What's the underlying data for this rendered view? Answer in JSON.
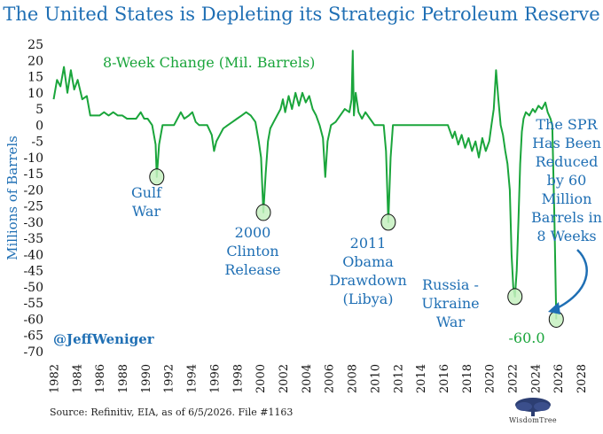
{
  "title": "The United States is Depleting its Strategic Petroleum Reserve",
  "source": "Source: Refinitiv, EIA, as of 6/5/2026.  File #1163",
  "handle": "@JeffWeniger",
  "logo_text": "WisdomTree",
  "colors": {
    "title": "#1f6fb4",
    "line": "#1aa53b",
    "axis_text": "#1f6fb4",
    "annotation": "#1f6fb4",
    "marker_fill": "#c6f0c0",
    "arrow": "#1f6fb4"
  },
  "chart_data": {
    "type": "line",
    "ylabel": "Millions of Barrels",
    "ylim": [
      -70,
      25
    ],
    "yticks": [
      25,
      20,
      15,
      10,
      5,
      0,
      -5,
      -10,
      -15,
      -20,
      -25,
      -30,
      -35,
      -40,
      -45,
      -50,
      -55,
      -60,
      -65,
      -70
    ],
    "xlim": [
      1981.5,
      2029
    ],
    "xticks": [
      1982,
      1984,
      1986,
      1988,
      1990,
      1992,
      1994,
      1996,
      1998,
      2000,
      2002,
      2004,
      2006,
      2008,
      2010,
      2012,
      2014,
      2016,
      2018,
      2020,
      2022,
      2024,
      2026,
      2028
    ],
    "series": [
      {
        "name": "8-Week Change (Mil. Barrels)",
        "points": [
          [
            1982.0,
            8
          ],
          [
            1982.3,
            14
          ],
          [
            1982.6,
            12
          ],
          [
            1982.9,
            18
          ],
          [
            1983.2,
            10
          ],
          [
            1983.5,
            17
          ],
          [
            1983.8,
            11
          ],
          [
            1984.1,
            14
          ],
          [
            1984.5,
            8
          ],
          [
            1984.9,
            9
          ],
          [
            1985.2,
            3
          ],
          [
            1985.6,
            3
          ],
          [
            1986.0,
            3
          ],
          [
            1986.4,
            4
          ],
          [
            1986.8,
            3
          ],
          [
            1987.2,
            4
          ],
          [
            1987.6,
            3
          ],
          [
            1988.0,
            3
          ],
          [
            1988.4,
            2
          ],
          [
            1988.8,
            2
          ],
          [
            1989.2,
            2
          ],
          [
            1989.6,
            4
          ],
          [
            1989.9,
            2
          ],
          [
            1990.2,
            2
          ],
          [
            1990.6,
            0
          ],
          [
            1990.9,
            -6
          ],
          [
            1991.0,
            -16
          ],
          [
            1991.2,
            -6
          ],
          [
            1991.5,
            0
          ],
          [
            1992.0,
            0
          ],
          [
            1992.5,
            0
          ],
          [
            1992.8,
            2
          ],
          [
            1993.1,
            4
          ],
          [
            1993.4,
            2
          ],
          [
            1993.8,
            3
          ],
          [
            1994.1,
            4
          ],
          [
            1994.4,
            1
          ],
          [
            1994.7,
            0
          ],
          [
            1995.0,
            0
          ],
          [
            1995.4,
            0
          ],
          [
            1995.8,
            -3
          ],
          [
            1996.0,
            -8
          ],
          [
            1996.2,
            -5
          ],
          [
            1996.5,
            -3
          ],
          [
            1996.8,
            -1
          ],
          [
            1997.2,
            0
          ],
          [
            1997.6,
            1
          ],
          [
            1998.0,
            2
          ],
          [
            1998.4,
            3
          ],
          [
            1998.8,
            4
          ],
          [
            1999.2,
            3
          ],
          [
            1999.6,
            1
          ],
          [
            1999.9,
            -5
          ],
          [
            2000.1,
            -10
          ],
          [
            2000.3,
            -27
          ],
          [
            2000.5,
            -15
          ],
          [
            2000.7,
            -5
          ],
          [
            2000.9,
            -1
          ],
          [
            2001.2,
            1
          ],
          [
            2001.5,
            3
          ],
          [
            2001.8,
            5
          ],
          [
            2002.0,
            8
          ],
          [
            2002.2,
            4
          ],
          [
            2002.5,
            9
          ],
          [
            2002.8,
            5
          ],
          [
            2003.1,
            10
          ],
          [
            2003.4,
            6
          ],
          [
            2003.7,
            10
          ],
          [
            2004.0,
            7
          ],
          [
            2004.3,
            9
          ],
          [
            2004.6,
            5
          ],
          [
            2004.9,
            3
          ],
          [
            2005.2,
            0
          ],
          [
            2005.5,
            -4
          ],
          [
            2005.7,
            -16
          ],
          [
            2005.9,
            -5
          ],
          [
            2006.2,
            0
          ],
          [
            2006.6,
            1
          ],
          [
            2007.0,
            3
          ],
          [
            2007.4,
            5
          ],
          [
            2007.8,
            4
          ],
          [
            2008.0,
            8
          ],
          [
            2008.1,
            23
          ],
          [
            2008.2,
            3
          ],
          [
            2008.35,
            10
          ],
          [
            2008.6,
            4
          ],
          [
            2008.9,
            2
          ],
          [
            2009.2,
            4
          ],
          [
            2009.6,
            2
          ],
          [
            2010.0,
            0
          ],
          [
            2010.4,
            0
          ],
          [
            2010.8,
            0
          ],
          [
            2011.0,
            -8
          ],
          [
            2011.2,
            -30
          ],
          [
            2011.4,
            -10
          ],
          [
            2011.6,
            0
          ],
          [
            2012.0,
            0
          ],
          [
            2012.3,
            0
          ],
          [
            2012.6,
            0
          ],
          [
            2012.9,
            0
          ],
          [
            2013.3,
            0
          ],
          [
            2013.7,
            0
          ],
          [
            2014.0,
            0
          ],
          [
            2014.4,
            0
          ],
          [
            2014.8,
            0
          ],
          [
            2015.2,
            0
          ],
          [
            2015.6,
            0
          ],
          [
            2016.0,
            0
          ],
          [
            2016.4,
            0
          ],
          [
            2016.8,
            -4
          ],
          [
            2017.0,
            -2
          ],
          [
            2017.3,
            -6
          ],
          [
            2017.6,
            -3
          ],
          [
            2017.9,
            -7
          ],
          [
            2018.2,
            -4
          ],
          [
            2018.5,
            -8
          ],
          [
            2018.8,
            -5
          ],
          [
            2019.1,
            -10
          ],
          [
            2019.4,
            -4
          ],
          [
            2019.7,
            -8
          ],
          [
            2020.0,
            -5
          ],
          [
            2020.2,
            0
          ],
          [
            2020.4,
            5
          ],
          [
            2020.6,
            17
          ],
          [
            2020.8,
            8
          ],
          [
            2021.0,
            0
          ],
          [
            2021.2,
            -3
          ],
          [
            2021.4,
            -8
          ],
          [
            2021.6,
            -12
          ],
          [
            2021.8,
            -20
          ],
          [
            2021.95,
            -40
          ],
          [
            2022.1,
            -50
          ],
          [
            2022.25,
            -53
          ],
          [
            2022.4,
            -45
          ],
          [
            2022.55,
            -30
          ],
          [
            2022.7,
            -12
          ],
          [
            2022.85,
            -2
          ],
          [
            2023.0,
            2
          ],
          [
            2023.2,
            4
          ],
          [
            2023.5,
            3
          ],
          [
            2023.8,
            5
          ],
          [
            2024.0,
            4
          ],
          [
            2024.3,
            6
          ],
          [
            2024.6,
            5
          ],
          [
            2024.9,
            7
          ],
          [
            2025.1,
            4
          ],
          [
            2025.35,
            2
          ],
          [
            2025.5,
            0
          ],
          [
            2025.7,
            -30
          ],
          [
            2025.85,
            -60
          ]
        ]
      }
    ],
    "annotations": [
      {
        "lines": [
          "Gulf",
          "War"
        ],
        "x": 1991.0,
        "y": -16
      },
      {
        "lines": [
          "2000",
          "Clinton",
          "Release"
        ],
        "x": 2000.3,
        "y": -27
      },
      {
        "lines": [
          "2011",
          "Obama",
          "Drawdown",
          "(Libya)"
        ],
        "x": 2011.2,
        "y": -30
      },
      {
        "lines": [
          "Russia -",
          "Ukraine",
          "War"
        ],
        "x": 2022.25,
        "y": -53
      },
      {
        "lines": [
          "-60.0"
        ],
        "x": 2025.85,
        "y": -60
      }
    ],
    "callout": [
      "The SPR",
      "Has Been",
      "Reduced",
      "by 60",
      "Million",
      "Barrels in",
      "8 Weeks"
    ],
    "grid": false
  }
}
